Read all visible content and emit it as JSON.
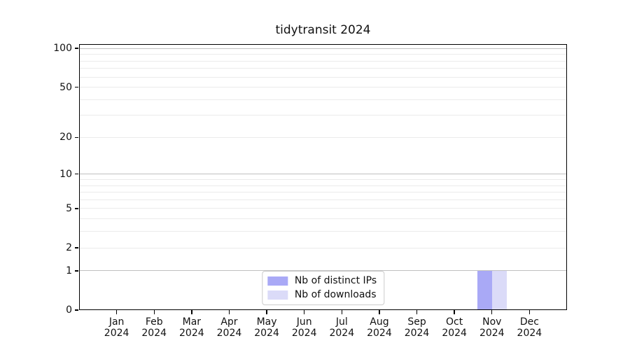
{
  "chart_data": {
    "type": "bar",
    "title": "tidytransit 2024",
    "xlabel": "",
    "ylabel": "",
    "yscale": "log1p",
    "ylim": [
      0,
      108
    ],
    "grid": "horizontal",
    "legend_position": "bottom-center",
    "categories": [
      "Jan 2024",
      "Feb 2024",
      "Mar 2024",
      "Apr 2024",
      "May 2024",
      "Jun 2024",
      "Jul 2024",
      "Aug 2024",
      "Sep 2024",
      "Oct 2024",
      "Nov 2024",
      "Dec 2024"
    ],
    "series": [
      {
        "name": "Nb of distinct IPs",
        "color": "#a9a9f6",
        "values": [
          0,
          0,
          0,
          0,
          0,
          0,
          0,
          0,
          0,
          0,
          1,
          0
        ]
      },
      {
        "name": "Nb of downloads",
        "color": "#dbdbf8",
        "values": [
          0,
          0,
          0,
          0,
          0,
          0,
          0,
          0,
          0,
          0,
          1,
          0
        ]
      }
    ],
    "yticks": [
      0,
      1,
      2,
      5,
      10,
      20,
      50,
      100
    ],
    "y_major_gridlines": [
      1,
      10,
      100
    ],
    "y_minor_gridlines": [
      2,
      3,
      4,
      5,
      6,
      7,
      8,
      9,
      20,
      30,
      40,
      50,
      60,
      70,
      80,
      90
    ]
  },
  "colors": {
    "major_grid": "#c0c0c0",
    "minor_grid": "#ebebeb",
    "spine": "#000000",
    "text": "#111111",
    "legend_border": "#cccccc",
    "background": "#ffffff"
  }
}
